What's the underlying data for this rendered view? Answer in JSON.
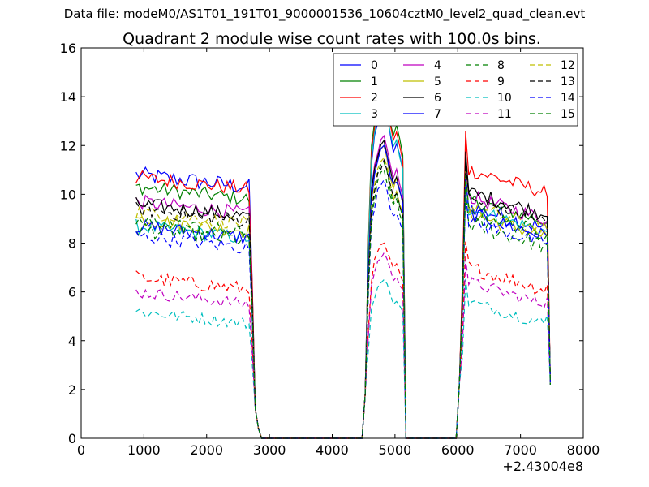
{
  "figure": {
    "suptitle": "Data file: modeM0/AS1T01_191T01_9000001536_10604cztM0_level2_quad_clean.evt"
  },
  "chart_data": {
    "type": "line",
    "title": "Quadrant 2 module wise count rates with 100.0s bins.",
    "xlabel": "",
    "ylabel": "",
    "x_offset_label": "+2.43004e8",
    "xlim": [
      0,
      8000
    ],
    "ylim": [
      0,
      16
    ],
    "xticks": [
      0,
      1000,
      2000,
      3000,
      4000,
      5000,
      6000,
      7000,
      8000
    ],
    "yticks": [
      0,
      2,
      4,
      6,
      8,
      10,
      12,
      14,
      16
    ],
    "grid": false,
    "legend": {
      "position": "top-right",
      "columns": 4
    },
    "series": [
      {
        "name": "0",
        "color": "#0000ff",
        "dash": "solid",
        "level": [
          10.8,
          10.2,
          9.5
        ],
        "peak": 13.7,
        "noise": 0.35
      },
      {
        "name": "1",
        "color": "#008000",
        "dash": "solid",
        "level": [
          10.3,
          9.9,
          9.8
        ],
        "peak": 14.5,
        "noise": 0.3
      },
      {
        "name": "2",
        "color": "#ff0000",
        "dash": "solid",
        "level": [
          10.7,
          10.2,
          11.0
        ],
        "peak": 14.2,
        "noise": 0.3
      },
      {
        "name": "3",
        "color": "#00bfbf",
        "dash": "solid",
        "level": [
          8.7,
          8.3,
          9.4
        ],
        "peak": 13.8,
        "noise": 0.3
      },
      {
        "name": "4",
        "color": "#bf00bf",
        "dash": "solid",
        "level": [
          9.7,
          9.0,
          9.9
        ],
        "peak": 12.4,
        "noise": 0.3
      },
      {
        "name": "5",
        "color": "#bfbf00",
        "dash": "solid",
        "level": [
          9.0,
          8.5,
          9.2
        ],
        "peak": 12.0,
        "noise": 0.3
      },
      {
        "name": "6",
        "color": "#000000",
        "dash": "solid",
        "level": [
          9.6,
          9.1,
          10.1
        ],
        "peak": 12.2,
        "noise": 0.3
      },
      {
        "name": "7",
        "color": "#0000ff",
        "dash": "solid",
        "level": [
          8.7,
          8.7,
          9.2
        ],
        "peak": 12.0,
        "noise": 0.3
      },
      {
        "name": "8",
        "color": "#008000",
        "dash": "dashed",
        "level": [
          8.6,
          8.0,
          8.8
        ],
        "peak": 11.3,
        "noise": 0.35
      },
      {
        "name": "9",
        "color": "#ff0000",
        "dash": "dashed",
        "level": [
          6.6,
          6.0,
          7.0
        ],
        "peak": 8.0,
        "noise": 0.3
      },
      {
        "name": "10",
        "color": "#00bfbf",
        "dash": "dashed",
        "level": [
          5.2,
          4.7,
          5.6
        ],
        "peak": 6.5,
        "noise": 0.25
      },
      {
        "name": "11",
        "color": "#bf00bf",
        "dash": "dashed",
        "level": [
          6.0,
          5.4,
          6.4
        ],
        "peak": 7.6,
        "noise": 0.25
      },
      {
        "name": "12",
        "color": "#bfbf00",
        "dash": "dashed",
        "level": [
          9.3,
          8.7,
          9.5
        ],
        "peak": 11.5,
        "noise": 0.3
      },
      {
        "name": "13",
        "color": "#000000",
        "dash": "dashed",
        "level": [
          9.4,
          9.0,
          9.8
        ],
        "peak": 11.4,
        "noise": 0.3
      },
      {
        "name": "14",
        "color": "#0000ff",
        "dash": "dashed",
        "level": [
          8.3,
          7.9,
          8.9
        ],
        "peak": 10.6,
        "noise": 0.3
      },
      {
        "name": "15",
        "color": "#008000",
        "dash": "dashed",
        "level": [
          8.9,
          8.3,
          9.3
        ],
        "peak": 11.0,
        "noise": 0.3
      }
    ]
  }
}
